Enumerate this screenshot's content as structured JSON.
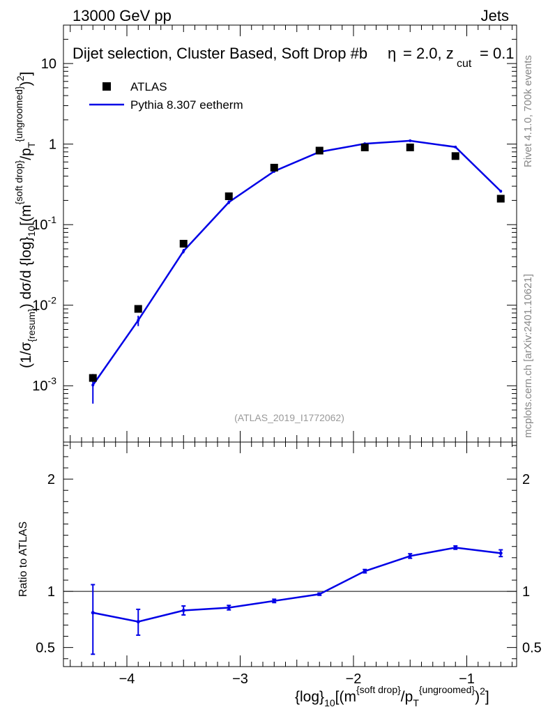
{
  "header": {
    "energy_label": "13000 GeV pp",
    "process_label": "Jets",
    "selection_title": "Dijet selection, Cluster Based, Soft Drop #b",
    "params_eta": "= 2.0, z",
    "params_cut_sub": "cut",
    "params_zcut": "= 0.1"
  },
  "side": {
    "rivet_label": "Rivet 4.1.0,  700k events",
    "mcplots_label": "mcplots.cern.ch [arXiv:2401.10621]"
  },
  "analysis_tag": "(ATLAS_2019_I1772062)",
  "legend": {
    "data_label": "ATLAS",
    "mc_label": "Pythia 8.307 eetherm"
  },
  "colors": {
    "mc": "#0000e6",
    "data": "#000000",
    "ref_line": "#000000"
  },
  "chart_data": [
    {
      "type": "scatter",
      "panel": "main",
      "yscale": "log",
      "ylim": [
        0.0002,
        30
      ],
      "xlim": [
        -4.56,
        -0.56
      ],
      "ylabel": "(1/σ_{resum}) dσ/d {log}_10[(m^{soft drop}/p_T^{ungroomed})^2]",
      "ytick_labels": [
        "10^{-3}",
        "10^{-2}",
        "10^{-1}",
        "1",
        "10"
      ],
      "series": [
        {
          "name": "ATLAS",
          "kind": "markers",
          "x": [
            -4.3,
            -3.9,
            -3.5,
            -3.1,
            -2.7,
            -2.3,
            -1.9,
            -1.5,
            -1.1,
            -0.7
          ],
          "values": [
            0.00125,
            0.009,
            0.058,
            0.225,
            0.51,
            0.83,
            0.91,
            0.91,
            0.71,
            0.21
          ]
        },
        {
          "name": "Pythia 8.307 eetherm",
          "kind": "line",
          "x": [
            -4.3,
            -3.9,
            -3.5,
            -3.1,
            -2.7,
            -2.3,
            -1.9,
            -1.5,
            -1.1,
            -0.7
          ],
          "values": [
            0.00102,
            0.0065,
            0.047,
            0.19,
            0.46,
            0.8,
            1.01,
            1.1,
            0.92,
            0.26
          ],
          "err_low": [
            0.0006,
            0.0055,
            0.044,
            0.18,
            0.44,
            0.78,
            0.99,
            1.08,
            0.9,
            0.25
          ],
          "err_high": [
            0.0014,
            0.0074,
            0.05,
            0.2,
            0.48,
            0.82,
            1.03,
            1.12,
            0.94,
            0.27
          ]
        }
      ]
    },
    {
      "type": "line",
      "panel": "ratio",
      "ylabel": "Ratio to ATLAS",
      "ylim": [
        0.33,
        2.33
      ],
      "xlim": [
        -4.56,
        -0.56
      ],
      "xlabel": "{log}_10[(m^{soft drop}/p_T^{ungroomed})^2]",
      "xtick_labels": [
        "−4",
        "−3",
        "−2",
        "−1"
      ],
      "ytick_labels": [
        "0.5",
        "1",
        "2"
      ],
      "reference": 1,
      "series": [
        {
          "name": "Pythia 8.307 eetherm / ATLAS",
          "x": [
            -4.3,
            -3.9,
            -3.5,
            -3.1,
            -2.7,
            -2.3,
            -1.9,
            -1.5,
            -1.1,
            -0.7
          ],
          "values": [
            0.81,
            0.73,
            0.83,
            0.855,
            0.915,
            0.975,
            1.18,
            1.315,
            1.39,
            1.34
          ],
          "err_low": [
            0.44,
            0.61,
            0.79,
            0.835,
            0.9,
            0.965,
            1.165,
            1.295,
            1.375,
            1.31
          ],
          "err_high": [
            1.06,
            0.84,
            0.87,
            0.875,
            0.93,
            0.985,
            1.195,
            1.335,
            1.405,
            1.37
          ]
        }
      ]
    }
  ]
}
